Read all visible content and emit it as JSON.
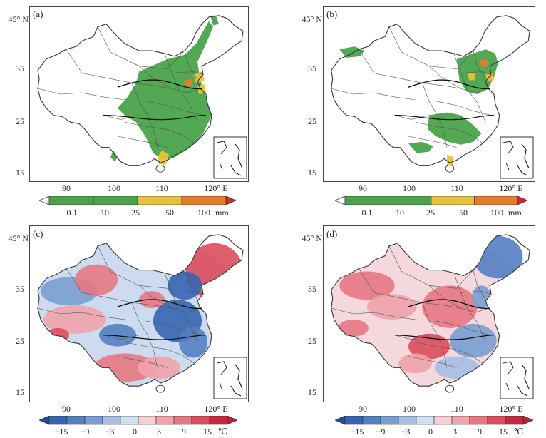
{
  "panels": [
    {
      "label": "(a)",
      "kind": "precip",
      "coverage": "east"
    },
    {
      "label": "(b)",
      "kind": "precip",
      "coverage": "north"
    },
    {
      "label": "(c)",
      "kind": "temp",
      "pattern": "c"
    },
    {
      "label": "(d)",
      "kind": "temp",
      "pattern": "d"
    }
  ],
  "axes": {
    "lat_labels": [
      "45° N",
      "35",
      "25",
      "15"
    ],
    "lon_labels": [
      "90",
      "100",
      "110",
      "120° E"
    ]
  },
  "precip_colorbar": {
    "ticks": [
      "0.1",
      "10",
      "25",
      "50",
      "100"
    ],
    "unit": "mm",
    "colors": [
      "#ffffff",
      "#4aa34a",
      "#4aa34a",
      "#e8c23a",
      "#e87a2a",
      "#d92a2a"
    ]
  },
  "temp_colorbar": {
    "ticks": [
      "−15",
      "−9",
      "−3",
      "0",
      "3",
      "9",
      "15"
    ],
    "unit": "℃",
    "colors": [
      "#1f4e9c",
      "#3565b0",
      "#5480c2",
      "#7a9ed2",
      "#a7bfe3",
      "#d2dff2",
      "#f6cfd3",
      "#f0a3ab",
      "#e77883",
      "#dc4e5d",
      "#c9283c",
      "#c01f34"
    ]
  }
}
